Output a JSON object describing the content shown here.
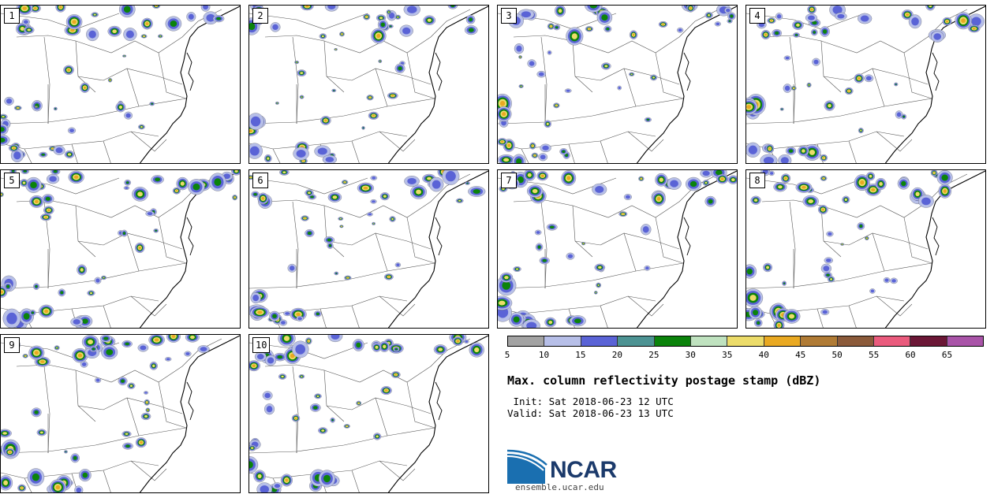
{
  "panels": [
    {
      "label": "1"
    },
    {
      "label": "2"
    },
    {
      "label": "3"
    },
    {
      "label": "4"
    },
    {
      "label": "5"
    },
    {
      "label": "6"
    },
    {
      "label": "7"
    },
    {
      "label": "8"
    },
    {
      "label": "9"
    },
    {
      "label": "10"
    }
  ],
  "colorbar": {
    "colors": [
      "#a3a3a3",
      "#b7bfe8",
      "#5a63d6",
      "#4d9393",
      "#0b830b",
      "#bfe2bf",
      "#ecdc6a",
      "#e9a922",
      "#b07b35",
      "#8b5a3a",
      "#ea5b7d",
      "#6b1736",
      "#a954a8"
    ],
    "ticks": [
      "5",
      "10",
      "15",
      "20",
      "25",
      "30",
      "35",
      "40",
      "45",
      "50",
      "55",
      "60",
      "65"
    ]
  },
  "title": "Max. column reflectivity postage stamp (dBZ)",
  "init": " Init: Sat 2018-06-23 12 UTC",
  "valid": "Valid: Sat 2018-06-23 13 UTC",
  "logo": {
    "text": "NCAR",
    "site": "ensemble.ucar.edu"
  }
}
